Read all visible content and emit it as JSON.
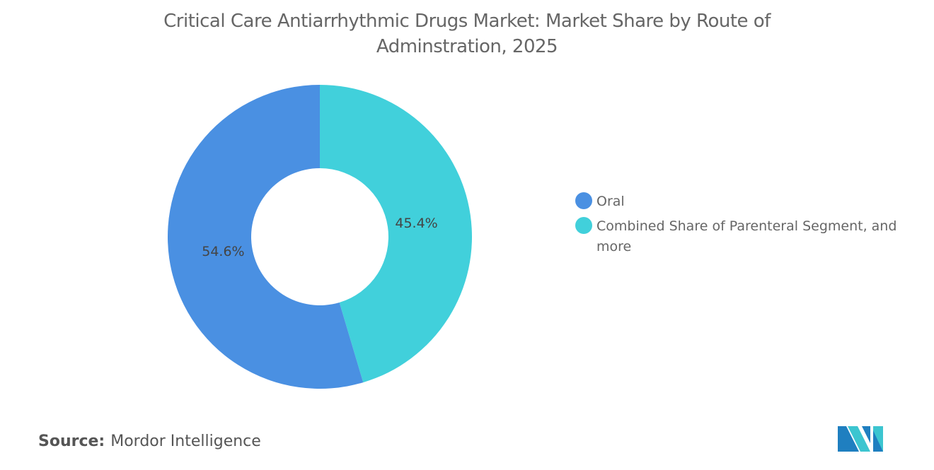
{
  "chart_data": {
    "type": "pie",
    "variant": "donut",
    "title": "Critical Care Antiarrhythmic Drugs Market: Market Share by Route of Adminstration, 2025",
    "categories": [
      "Combined Share of Parenteral Segment, and more",
      "Oral"
    ],
    "values": [
      45.4,
      54.6
    ],
    "labels": [
      "45.4%",
      "54.6%"
    ],
    "colors": [
      "#41D0DB",
      "#4A90E2"
    ],
    "legend_position": "right",
    "legend": [
      {
        "label": "Oral",
        "color": "#4A90E2"
      },
      {
        "label": "Combined Share of Parenteral Segment, and more",
        "color": "#41D0DB"
      }
    ]
  },
  "source": {
    "label": "Source:",
    "value": "Mordor Intelligence"
  },
  "logo": {
    "name": "mordor-intelligence-logo",
    "colors": [
      "#1F7FC0",
      "#3CC5D0"
    ]
  }
}
